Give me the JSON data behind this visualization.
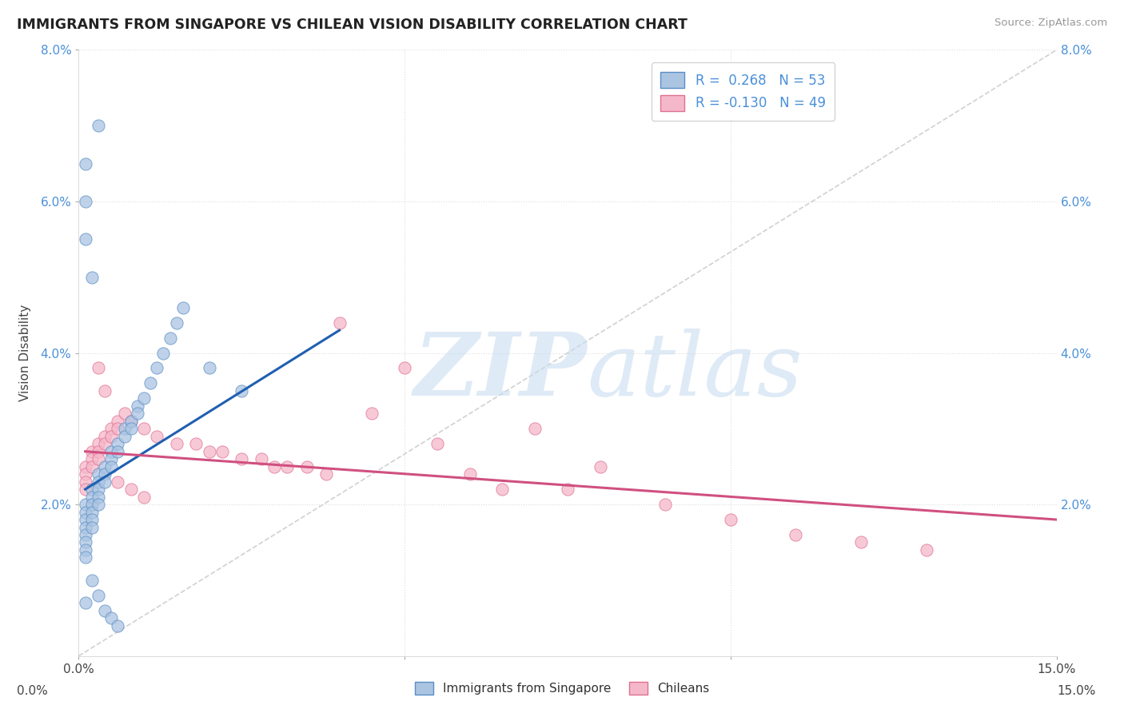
{
  "title": "IMMIGRANTS FROM SINGAPORE VS CHILEAN VISION DISABILITY CORRELATION CHART",
  "source": "Source: ZipAtlas.com",
  "ylabel": "Vision Disability",
  "xlim": [
    0.0,
    0.15
  ],
  "ylim": [
    0.0,
    0.08
  ],
  "xticks": [
    0.0,
    0.05,
    0.1,
    0.15
  ],
  "xticklabels": [
    "0.0%",
    "",
    "",
    "15.0%"
  ],
  "yticks": [
    0.02,
    0.04,
    0.06,
    0.08
  ],
  "yticklabels": [
    "2.0%",
    "4.0%",
    "6.0%",
    "8.0%"
  ],
  "r_blue": 0.268,
  "n_blue": 53,
  "r_pink": -0.13,
  "n_pink": 49,
  "blue_fill": "#aac4e2",
  "blue_edge": "#5b8ec4",
  "pink_fill": "#f5b8ca",
  "pink_edge": "#e07090",
  "blue_line_color": "#2060b0",
  "pink_line_color": "#d05080",
  "diag_color": "#cccccc",
  "grid_color": "#dddddd",
  "watermark_color": "#c8ddf0",
  "bg_color": "#ffffff",
  "blue_x": [
    0.001,
    0.001,
    0.001,
    0.001,
    0.001,
    0.001,
    0.001,
    0.001,
    0.002,
    0.002,
    0.002,
    0.002,
    0.002,
    0.002,
    0.003,
    0.003,
    0.003,
    0.003,
    0.003,
    0.004,
    0.004,
    0.004,
    0.005,
    0.005,
    0.005,
    0.006,
    0.006,
    0.007,
    0.007,
    0.008,
    0.008,
    0.009,
    0.009,
    0.01,
    0.011,
    0.012,
    0.013,
    0.014,
    0.015,
    0.016,
    0.001,
    0.001,
    0.001,
    0.002,
    0.003,
    0.02,
    0.025,
    0.002,
    0.003,
    0.001,
    0.004,
    0.005,
    0.006
  ],
  "blue_y": [
    0.02,
    0.019,
    0.018,
    0.017,
    0.016,
    0.015,
    0.014,
    0.013,
    0.022,
    0.021,
    0.02,
    0.019,
    0.018,
    0.017,
    0.024,
    0.023,
    0.022,
    0.021,
    0.02,
    0.025,
    0.024,
    0.023,
    0.027,
    0.026,
    0.025,
    0.028,
    0.027,
    0.03,
    0.029,
    0.031,
    0.03,
    0.033,
    0.032,
    0.034,
    0.036,
    0.038,
    0.04,
    0.042,
    0.044,
    0.046,
    0.065,
    0.06,
    0.055,
    0.05,
    0.07,
    0.038,
    0.035,
    0.01,
    0.008,
    0.007,
    0.006,
    0.005,
    0.004
  ],
  "pink_x": [
    0.001,
    0.001,
    0.001,
    0.001,
    0.002,
    0.002,
    0.002,
    0.003,
    0.003,
    0.003,
    0.004,
    0.004,
    0.005,
    0.005,
    0.006,
    0.006,
    0.007,
    0.008,
    0.01,
    0.012,
    0.015,
    0.018,
    0.02,
    0.022,
    0.025,
    0.028,
    0.03,
    0.032,
    0.035,
    0.038,
    0.04,
    0.045,
    0.05,
    0.055,
    0.06,
    0.065,
    0.07,
    0.075,
    0.08,
    0.09,
    0.1,
    0.11,
    0.12,
    0.13,
    0.003,
    0.004,
    0.006,
    0.008,
    0.01
  ],
  "pink_y": [
    0.025,
    0.024,
    0.023,
    0.022,
    0.027,
    0.026,
    0.025,
    0.028,
    0.027,
    0.026,
    0.029,
    0.028,
    0.03,
    0.029,
    0.031,
    0.03,
    0.032,
    0.031,
    0.03,
    0.029,
    0.028,
    0.028,
    0.027,
    0.027,
    0.026,
    0.026,
    0.025,
    0.025,
    0.025,
    0.024,
    0.044,
    0.032,
    0.038,
    0.028,
    0.024,
    0.022,
    0.03,
    0.022,
    0.025,
    0.02,
    0.018,
    0.016,
    0.015,
    0.014,
    0.038,
    0.035,
    0.023,
    0.022,
    0.021
  ],
  "blue_trend_x": [
    0.001,
    0.04
  ],
  "blue_trend_y": [
    0.022,
    0.043
  ],
  "pink_trend_x": [
    0.001,
    0.15
  ],
  "pink_trend_y": [
    0.027,
    0.018
  ]
}
